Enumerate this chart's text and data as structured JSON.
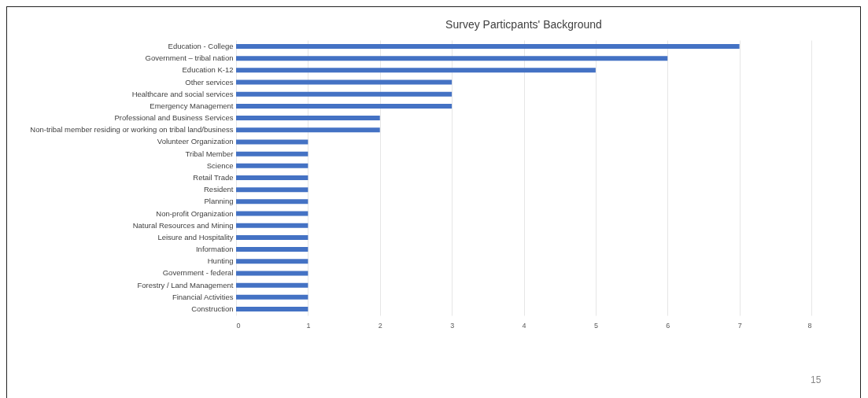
{
  "chart_data": {
    "type": "bar",
    "orientation": "horizontal",
    "title": "Survey Particpants' Background",
    "categories": [
      "Education - College",
      "Government – tribal nation",
      "Education K-12",
      "Other services",
      "Healthcare and social services",
      "Emergency Management",
      "Professional and Business Services",
      "Non-tribal member residing or working on tribal land/business",
      "Volunteer Organization",
      "Tribal Member",
      "Science",
      "Retail Trade",
      "Resident",
      "Planning",
      "Non-profit Organization",
      "Natural Resources and Mining",
      "Leisure and Hospitality",
      "Information",
      "Hunting",
      "Government - federal",
      "Forestry / Land Management",
      "Financial Activities",
      "Construction"
    ],
    "values": [
      7,
      6,
      5,
      3,
      3,
      3,
      2,
      2,
      1,
      1,
      1,
      1,
      1,
      1,
      1,
      1,
      1,
      1,
      1,
      1,
      1,
      1,
      1
    ],
    "color": "#4472c4",
    "xlim": [
      0,
      8
    ],
    "xticks": [
      0,
      1,
      2,
      3,
      4,
      5,
      6,
      7,
      8
    ],
    "grid": "x",
    "annotations": [
      "15"
    ]
  }
}
